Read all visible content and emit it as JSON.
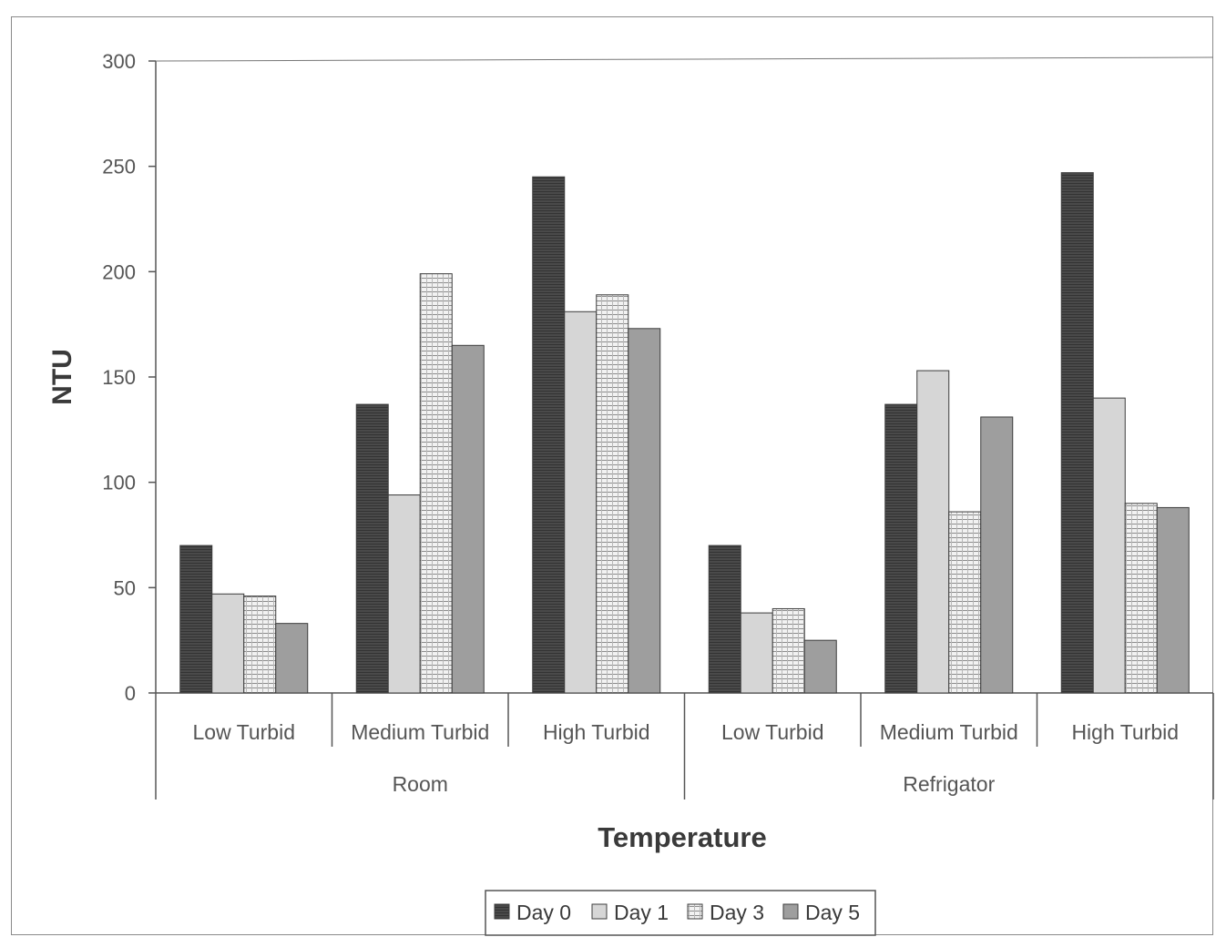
{
  "chart_data": {
    "type": "bar",
    "xlabel": "Temperature",
    "ylabel": "NTU",
    "ylim": [
      0,
      300
    ],
    "yticks": [
      0,
      50,
      100,
      150,
      200,
      250,
      300
    ],
    "grid": false,
    "legend_position": "bottom",
    "groups": [
      {
        "name": "Room",
        "categories": [
          "Low Turbid",
          "Medium Turbid",
          "High Turbid"
        ]
      },
      {
        "name": "Refrigator",
        "categories": [
          "Low Turbid",
          "Medium Turbid",
          "High Turbid"
        ]
      }
    ],
    "categories": [
      "Low Turbid",
      "Medium Turbid",
      "High Turbid",
      "Low Turbid",
      "Medium Turbid",
      "High Turbid"
    ],
    "series": [
      {
        "name": "Day 0",
        "color": "#4a4a4a",
        "values": [
          70,
          137,
          245,
          70,
          137,
          247
        ]
      },
      {
        "name": "Day 1",
        "color": "#d4d4d4",
        "values": [
          47,
          94,
          181,
          38,
          153,
          140
        ]
      },
      {
        "name": "Day 3",
        "color": "#eeeeee",
        "values": [
          46,
          199,
          189,
          40,
          86,
          90
        ]
      },
      {
        "name": "Day 5",
        "color": "#9e9e9e",
        "values": [
          33,
          165,
          173,
          25,
          131,
          88
        ]
      }
    ]
  }
}
